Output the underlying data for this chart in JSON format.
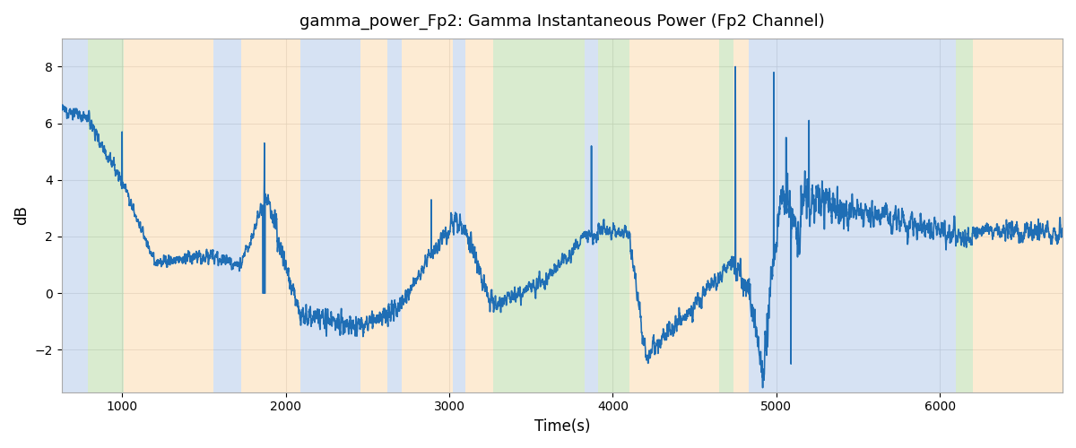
{
  "title": "gamma_power_Fp2: Gamma Instantaneous Power (Fp2 Channel)",
  "xlabel": "Time(s)",
  "ylabel": "dB",
  "line_color": "#1f6eb5",
  "line_width": 1.2,
  "background_color": "#ffffff",
  "ylim": [
    -3.5,
    9.0
  ],
  "xlim": [
    630,
    6750
  ],
  "bg_regions": [
    {
      "start": 630,
      "end": 790,
      "color": "#aec6e8",
      "alpha": 0.5
    },
    {
      "start": 790,
      "end": 1010,
      "color": "#b5d9a0",
      "alpha": 0.5
    },
    {
      "start": 1010,
      "end": 1560,
      "color": "#fdd9a8",
      "alpha": 0.5
    },
    {
      "start": 1560,
      "end": 1730,
      "color": "#aec6e8",
      "alpha": 0.5
    },
    {
      "start": 1730,
      "end": 2090,
      "color": "#fdd9a8",
      "alpha": 0.5
    },
    {
      "start": 2090,
      "end": 2460,
      "color": "#aec6e8",
      "alpha": 0.5
    },
    {
      "start": 2460,
      "end": 2620,
      "color": "#fdd9a8",
      "alpha": 0.5
    },
    {
      "start": 2620,
      "end": 2710,
      "color": "#aec6e8",
      "alpha": 0.5
    },
    {
      "start": 2710,
      "end": 3020,
      "color": "#fdd9a8",
      "alpha": 0.5
    },
    {
      "start": 3020,
      "end": 3100,
      "color": "#aec6e8",
      "alpha": 0.5
    },
    {
      "start": 3100,
      "end": 3270,
      "color": "#fdd9a8",
      "alpha": 0.5
    },
    {
      "start": 3270,
      "end": 3830,
      "color": "#b5d9a0",
      "alpha": 0.5
    },
    {
      "start": 3830,
      "end": 3910,
      "color": "#aec6e8",
      "alpha": 0.5
    },
    {
      "start": 3910,
      "end": 4100,
      "color": "#b5d9a0",
      "alpha": 0.5
    },
    {
      "start": 4100,
      "end": 4650,
      "color": "#fdd9a8",
      "alpha": 0.5
    },
    {
      "start": 4650,
      "end": 4740,
      "color": "#b5d9a0",
      "alpha": 0.5
    },
    {
      "start": 4740,
      "end": 4830,
      "color": "#fdd9a8",
      "alpha": 0.5
    },
    {
      "start": 4830,
      "end": 6100,
      "color": "#aec6e8",
      "alpha": 0.5
    },
    {
      "start": 6100,
      "end": 6200,
      "color": "#b5d9a0",
      "alpha": 0.5
    },
    {
      "start": 6200,
      "end": 6750,
      "color": "#fdd9a8",
      "alpha": 0.5
    }
  ],
  "grid_color": "#cccccc",
  "grid_alpha": 0.7,
  "tick_fontsize": 10,
  "label_fontsize": 12,
  "title_fontsize": 13,
  "xticks": [
    1000,
    2000,
    3000,
    4000,
    5000,
    6000
  ],
  "yticks": [
    -2,
    0,
    2,
    4,
    6,
    8
  ]
}
